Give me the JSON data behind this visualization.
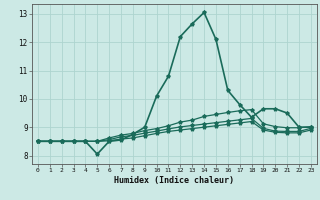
{
  "xlabel": "Humidex (Indice chaleur)",
  "xlim": [
    -0.5,
    23.5
  ],
  "ylim": [
    7.7,
    13.35
  ],
  "yticks": [
    8,
    9,
    10,
    11,
    12,
    13
  ],
  "xticks": [
    0,
    1,
    2,
    3,
    4,
    5,
    6,
    7,
    8,
    9,
    10,
    11,
    12,
    13,
    14,
    15,
    16,
    17,
    18,
    19,
    20,
    21,
    22,
    23
  ],
  "background_color": "#cce9e5",
  "grid_color": "#aed4cf",
  "line_color": "#1a6b5a",
  "series": [
    [
      8.5,
      8.5,
      8.5,
      8.5,
      8.5,
      8.05,
      8.5,
      8.55,
      8.75,
      9.0,
      10.1,
      10.8,
      12.2,
      12.65,
      13.05,
      12.1,
      10.3,
      9.8,
      9.35,
      9.65,
      9.65,
      9.5,
      9.0,
      9.0
    ],
    [
      8.5,
      8.5,
      8.5,
      8.5,
      8.5,
      8.5,
      8.62,
      8.72,
      8.78,
      8.88,
      8.95,
      9.05,
      9.18,
      9.25,
      9.38,
      9.45,
      9.52,
      9.58,
      9.62,
      9.12,
      9.02,
      8.98,
      8.98,
      9.02
    ],
    [
      8.5,
      8.5,
      8.5,
      8.5,
      8.5,
      8.5,
      8.56,
      8.66,
      8.71,
      8.79,
      8.86,
      8.94,
      9.01,
      9.06,
      9.11,
      9.16,
      9.21,
      9.26,
      9.31,
      8.96,
      8.86,
      8.85,
      8.85,
      8.96
    ],
    [
      8.5,
      8.5,
      8.5,
      8.5,
      8.5,
      8.5,
      8.52,
      8.58,
      8.62,
      8.7,
      8.78,
      8.85,
      8.9,
      8.95,
      9.0,
      9.05,
      9.1,
      9.15,
      9.2,
      8.9,
      8.82,
      8.8,
      8.8,
      8.9
    ]
  ]
}
